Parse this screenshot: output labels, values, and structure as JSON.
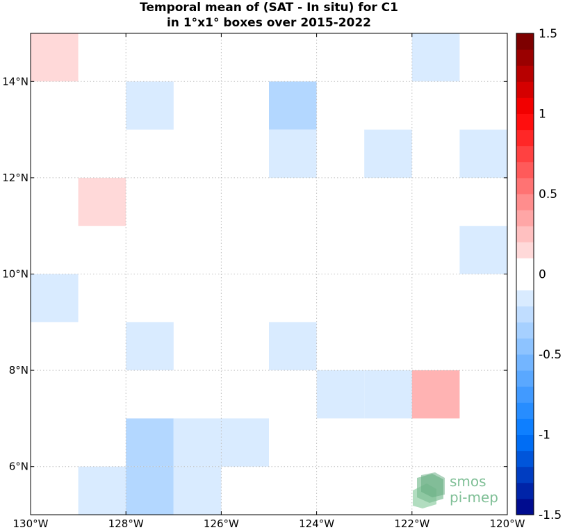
{
  "chart_data": {
    "type": "heatmap",
    "title_line1": "Temporal mean of (SAT - In situ) for C1",
    "title_line2": "in 1°x1° boxes over 2015-2022",
    "xlim": [
      -130,
      -120
    ],
    "ylim": [
      5,
      15
    ],
    "x_ticks": [
      {
        "value": -130,
        "label": "130°W"
      },
      {
        "value": -128,
        "label": "128°W"
      },
      {
        "value": -126,
        "label": "126°W"
      },
      {
        "value": -124,
        "label": "124°W"
      },
      {
        "value": -122,
        "label": "122°W"
      },
      {
        "value": -120,
        "label": "120°W"
      }
    ],
    "y_ticks": [
      {
        "value": 6,
        "label": "6°N"
      },
      {
        "value": 8,
        "label": "8°N"
      },
      {
        "value": 10,
        "label": "10°N"
      },
      {
        "value": 12,
        "label": "12°N"
      },
      {
        "value": 14,
        "label": "14°N"
      }
    ],
    "grid": true,
    "cells": [
      {
        "lon": -130,
        "lat": 14,
        "value": 0.15
      },
      {
        "lon": -122,
        "lat": 14,
        "value": -0.15
      },
      {
        "lon": -128,
        "lat": 13,
        "value": -0.15
      },
      {
        "lon": -125,
        "lat": 13,
        "value": -0.3
      },
      {
        "lon": -125,
        "lat": 12,
        "value": -0.15
      },
      {
        "lon": -123,
        "lat": 12,
        "value": -0.15
      },
      {
        "lon": -121,
        "lat": 12,
        "value": -0.15
      },
      {
        "lon": -129,
        "lat": 11,
        "value": 0.15
      },
      {
        "lon": -121,
        "lat": 10,
        "value": -0.15
      },
      {
        "lon": -130,
        "lat": 9,
        "value": -0.15
      },
      {
        "lon": -128,
        "lat": 8,
        "value": -0.15
      },
      {
        "lon": -125,
        "lat": 8,
        "value": -0.15
      },
      {
        "lon": -124,
        "lat": 7,
        "value": -0.15
      },
      {
        "lon": -123,
        "lat": 7,
        "value": -0.15
      },
      {
        "lon": -122,
        "lat": 7,
        "value": 0.3
      },
      {
        "lon": -128,
        "lat": 6,
        "value": -0.3
      },
      {
        "lon": -127,
        "lat": 6,
        "value": -0.15
      },
      {
        "lon": -126,
        "lat": 6,
        "value": -0.15
      },
      {
        "lon": -129,
        "lat": 5,
        "value": -0.15
      },
      {
        "lon": -128,
        "lat": 5,
        "value": -0.3
      },
      {
        "lon": -127,
        "lat": 5,
        "value": -0.15
      }
    ],
    "colorbar": {
      "range": [
        -1.5,
        1.5
      ],
      "step": 0.1,
      "ticks": [
        {
          "value": 1.5,
          "label": "1.5"
        },
        {
          "value": 1,
          "label": "1"
        },
        {
          "value": 0.5,
          "label": "0.5"
        },
        {
          "value": 0,
          "label": "0"
        },
        {
          "value": -0.5,
          "label": "-0.5"
        },
        {
          "value": -1,
          "label": "-1"
        },
        {
          "value": -1.5,
          "label": "-1.5"
        }
      ]
    },
    "logo_text": [
      "smos",
      "pi-mep"
    ],
    "colors": {
      "cell_border": "#ffffff",
      "grid": "#bfbfbf"
    }
  }
}
